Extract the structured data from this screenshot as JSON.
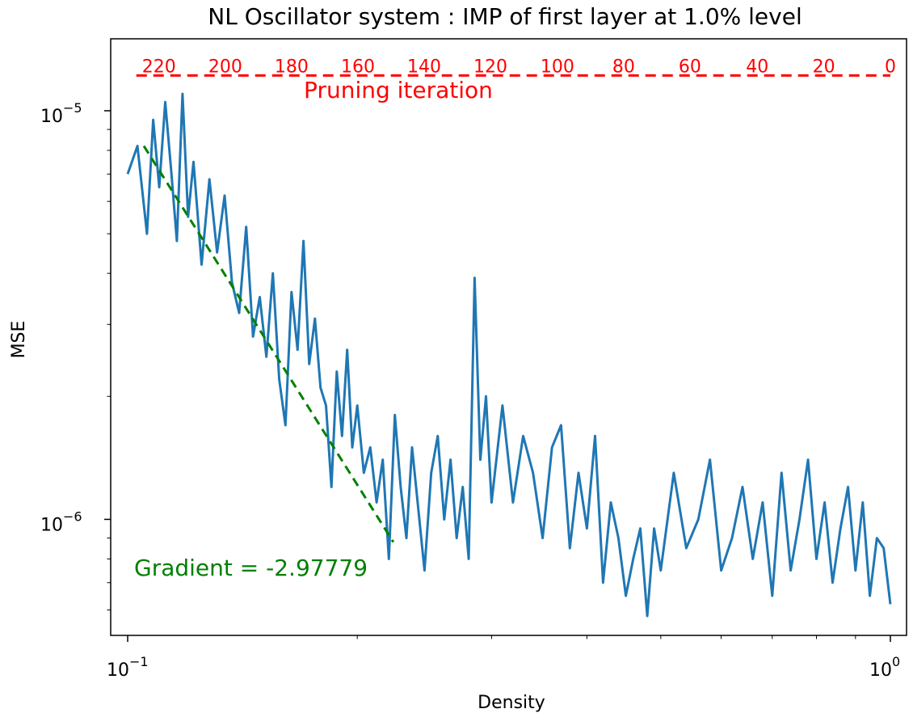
{
  "chart_data": {
    "type": "line",
    "title": "NL Oscillator system : IMP of first layer at 1.0% level",
    "xlabel": "Density",
    "ylabel": "MSE",
    "xscale": "log",
    "yscale": "log",
    "xlim": [
      0.095,
      1.05
    ],
    "ylim": [
      5.2e-07,
      1.5e-05
    ],
    "x_ticks": [
      {
        "value": 0.1,
        "mantissa": "10",
        "exponent": "−1"
      },
      {
        "value": 1.0,
        "mantissa": "10",
        "exponent": "0"
      }
    ],
    "y_ticks": [
      {
        "value": 1e-05,
        "mantissa": "10",
        "exponent": "−5"
      },
      {
        "value": 1e-06,
        "mantissa": "10",
        "exponent": "−6"
      }
    ],
    "grid": false,
    "colors": {
      "series": "#1f77b4",
      "fit": "#008000",
      "pruning": "#ff0000",
      "axes": "#000000"
    },
    "pruning_axis": {
      "label": "Pruning iteration",
      "level": 1.22e-05,
      "ticks": [
        {
          "label": "220",
          "density": 0.1099
        },
        {
          "label": "200",
          "density": 0.1343
        },
        {
          "label": "180",
          "density": 0.164
        },
        {
          "label": "160",
          "density": 0.2004
        },
        {
          "label": "140",
          "density": 0.2448
        },
        {
          "label": "120",
          "density": 0.299
        },
        {
          "label": "100",
          "density": 0.366
        },
        {
          "label": "80",
          "density": 0.447
        },
        {
          "label": "60",
          "density": 0.546
        },
        {
          "label": "40",
          "density": 0.669
        },
        {
          "label": "20",
          "density": 0.818
        },
        {
          "label": "0",
          "density": 1.0
        }
      ]
    },
    "fit": {
      "label": "Gradient = -2.97779",
      "gradient": -2.97779,
      "x": [
        0.105,
        0.223
      ],
      "y": [
        8.2e-06,
        8.8e-07
      ]
    },
    "series": [
      {
        "x": [
          0.1,
          0.103,
          0.106,
          0.108,
          0.11,
          0.112,
          0.114,
          0.116,
          0.118,
          0.12,
          0.122,
          0.125,
          0.128,
          0.131,
          0.134,
          0.137,
          0.14,
          0.143,
          0.146,
          0.149,
          0.152,
          0.155,
          0.158,
          0.161,
          0.164,
          0.167,
          0.17,
          0.173,
          0.176,
          0.179,
          0.182,
          0.185,
          0.188,
          0.191,
          0.194,
          0.197,
          0.2,
          0.204,
          0.208,
          0.212,
          0.216,
          0.22,
          0.224,
          0.228,
          0.232,
          0.236,
          0.24,
          0.245,
          0.25,
          0.255,
          0.26,
          0.265,
          0.27,
          0.275,
          0.28,
          0.285,
          0.29,
          0.295,
          0.3,
          0.31,
          0.32,
          0.33,
          0.34,
          0.35,
          0.36,
          0.37,
          0.38,
          0.39,
          0.4,
          0.41,
          0.42,
          0.43,
          0.44,
          0.45,
          0.46,
          0.47,
          0.48,
          0.49,
          0.5,
          0.52,
          0.54,
          0.56,
          0.58,
          0.6,
          0.62,
          0.64,
          0.66,
          0.68,
          0.7,
          0.72,
          0.74,
          0.76,
          0.78,
          0.8,
          0.82,
          0.84,
          0.86,
          0.88,
          0.9,
          0.92,
          0.94,
          0.96,
          0.98,
          1.0
        ],
        "y": [
          7e-06,
          8.2e-06,
          5e-06,
          9.5e-06,
          6.5e-06,
          1.05e-05,
          7.2e-06,
          4.8e-06,
          1.1e-05,
          5.5e-06,
          7.5e-06,
          4.2e-06,
          6.8e-06,
          4.5e-06,
          6.2e-06,
          3.8e-06,
          3.2e-06,
          5.2e-06,
          2.8e-06,
          3.5e-06,
          2.5e-06,
          4e-06,
          2.2e-06,
          1.7e-06,
          3.6e-06,
          2.6e-06,
          4.8e-06,
          2.4e-06,
          3.1e-06,
          2.1e-06,
          1.9e-06,
          1.2e-06,
          2.3e-06,
          1.6e-06,
          2.6e-06,
          1.5e-06,
          1.9e-06,
          1.3e-06,
          1.5e-06,
          1.1e-06,
          1.4e-06,
          8e-07,
          1.8e-06,
          1.2e-06,
          9e-07,
          1.5e-06,
          1.1e-06,
          7.5e-07,
          1.3e-06,
          1.6e-06,
          1e-06,
          1.4e-06,
          9e-07,
          1.2e-06,
          8e-07,
          3.9e-06,
          1.4e-06,
          2e-06,
          1.1e-06,
          1.9e-06,
          1.1e-06,
          1.6e-06,
          1.3e-06,
          9e-07,
          1.5e-06,
          1.7e-06,
          8.5e-07,
          1.3e-06,
          9.5e-07,
          1.6e-06,
          7e-07,
          1.1e-06,
          9e-07,
          6.5e-07,
          8e-07,
          9.5e-07,
          5.8e-07,
          9.5e-07,
          7.5e-07,
          1.3e-06,
          8.5e-07,
          1e-06,
          1.4e-06,
          7.5e-07,
          9e-07,
          1.2e-06,
          8e-07,
          1.1e-06,
          6.5e-07,
          1.3e-06,
          7.5e-07,
          1e-06,
          1.4e-06,
          8e-07,
          1.1e-06,
          7e-07,
          9.5e-07,
          1.2e-06,
          7.5e-07,
          1.1e-06,
          6.5e-07,
          9e-07,
          8.5e-07,
          6.2e-07
        ]
      }
    ]
  }
}
